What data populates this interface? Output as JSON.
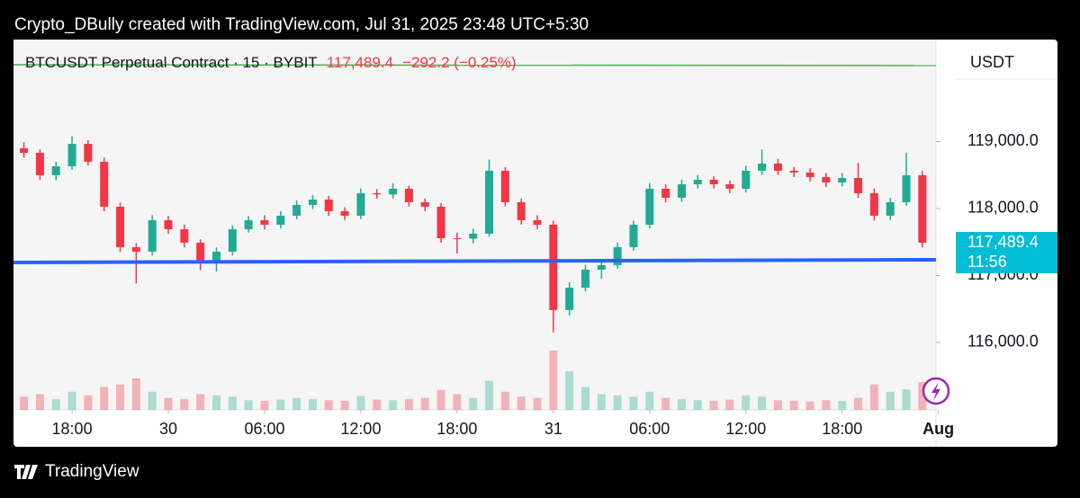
{
  "header": "Crypto_DBully created with TradingView.com, Jul 31, 2025 23:48 UTC+5:30",
  "footer": "TradingView",
  "chart_data": {
    "type": "candlestick",
    "title": "BTCUSDT Perpetual Contract · 15 · BYBIT",
    "change": {
      "value": -292.2,
      "label": "−292.2 (−0.25%)"
    },
    "last_price": {
      "value": 117489.4,
      "label": "117,489.4",
      "countdown": "11:56"
    },
    "y_unit": "USDT",
    "up_color": "#22ab94",
    "down_color": "#f23645",
    "x": [
      -3,
      -2,
      -1,
      0,
      1,
      2,
      3,
      4,
      5,
      6,
      7,
      8,
      9,
      10,
      11,
      12,
      13,
      14,
      15,
      16,
      17,
      18,
      19,
      20,
      21,
      22,
      23,
      24,
      25,
      26,
      27,
      28,
      29,
      30,
      31,
      32,
      33,
      34,
      35,
      36,
      37,
      38,
      39,
      40,
      41,
      42,
      43,
      44,
      45,
      46,
      47,
      48,
      49,
      50,
      51,
      52,
      53
    ],
    "open": [
      118900,
      118832,
      118497,
      118631,
      118966,
      118698,
      118027,
      117423,
      117356,
      117826,
      117691,
      117490,
      117222,
      117356,
      117691,
      117826,
      117758,
      117893,
      118054,
      118134,
      117960,
      117893,
      118228,
      118210,
      118295,
      118094,
      118027,
      117557,
      117550,
      117624,
      118564,
      118094,
      117826,
      117758,
      116484,
      116819,
      117087,
      117154,
      117423,
      117758,
      118295,
      118161,
      118362,
      118429,
      118362,
      118295,
      118564,
      118671,
      118564,
      118537,
      118470,
      118389,
      118456,
      118228,
      117893,
      118094,
      118497
    ],
    "high": [
      118990,
      118880,
      118700,
      119080,
      119020,
      118760,
      118090,
      117480,
      117900,
      117890,
      117760,
      117540,
      117420,
      117750,
      117890,
      117900,
      117960,
      118120,
      118200,
      118190,
      118020,
      118300,
      118290,
      118380,
      118340,
      118150,
      118080,
      117640,
      117700,
      118730,
      118620,
      118150,
      117900,
      117820,
      116900,
      117160,
      117230,
      117490,
      117820,
      118380,
      118360,
      118430,
      118500,
      118480,
      118420,
      118640,
      118880,
      118740,
      118620,
      118600,
      118530,
      118530,
      118680,
      118300,
      118160,
      118830,
      118560
    ],
    "low": [
      118760,
      118430,
      118420,
      118580,
      118640,
      117960,
      117350,
      116880,
      117300,
      117620,
      117420,
      117080,
      117060,
      117300,
      117640,
      117690,
      117700,
      117840,
      117990,
      117890,
      117830,
      117840,
      118150,
      118150,
      118030,
      117960,
      117490,
      117330,
      117480,
      117580,
      118030,
      117760,
      117690,
      116150,
      116400,
      116760,
      116950,
      117100,
      117370,
      117700,
      118090,
      118100,
      118300,
      118300,
      118230,
      118240,
      118500,
      118500,
      118470,
      118400,
      118320,
      118330,
      118160,
      117820,
      117830,
      118040,
      117420
    ],
    "close": [
      118832,
      118497,
      118631,
      118966,
      118698,
      118027,
      117423,
      117356,
      117826,
      117691,
      117490,
      117222,
      117356,
      117691,
      117826,
      117758,
      117893,
      118054,
      118134,
      117960,
      117893,
      118228,
      118210,
      118295,
      118094,
      118027,
      117557,
      117550,
      117624,
      118564,
      118094,
      117826,
      117758,
      116484,
      116819,
      117087,
      117154,
      117423,
      117758,
      118295,
      118161,
      118362,
      118429,
      118362,
      118295,
      118564,
      118671,
      118564,
      118537,
      118470,
      118389,
      118456,
      118228,
      117893,
      118094,
      118497,
      117489.4
    ],
    "volume": [
      220,
      260,
      180,
      300,
      240,
      380,
      420,
      520,
      300,
      200,
      180,
      260,
      240,
      220,
      160,
      150,
      170,
      200,
      180,
      160,
      150,
      230,
      170,
      160,
      180,
      200,
      330,
      260,
      200,
      480,
      300,
      220,
      200,
      980,
      640,
      380,
      260,
      240,
      220,
      300,
      200,
      180,
      160,
      150,
      170,
      240,
      220,
      160,
      150,
      140,
      160,
      150,
      200,
      420,
      300,
      340,
      460
    ],
    "lines": [
      {
        "color": "#2962ff",
        "x": [
          -3.65,
          53.85
        ],
        "y": [
          117195,
          117235
        ]
      },
      {
        "color": "#4caf50",
        "x": [
          -3.65,
          53.85
        ],
        "y": [
          120147,
          120135
        ]
      }
    ],
    "xlim": [
      -3.65,
      53.85
    ],
    "xticks": [
      {
        "value": 0,
        "label": "18:00"
      },
      {
        "value": 6,
        "label": "30"
      },
      {
        "value": 12,
        "label": "06:00"
      },
      {
        "value": 18,
        "label": "12:00"
      },
      {
        "value": 24,
        "label": "18:00"
      },
      {
        "value": 30,
        "label": "31"
      },
      {
        "value": 36,
        "label": "06:00"
      },
      {
        "value": 42,
        "label": "12:00"
      },
      {
        "value": 48,
        "label": "18:00"
      },
      {
        "value": 54,
        "label": "Aug"
      }
    ],
    "ylim": [
      114993,
      120523
    ],
    "yticks": [
      {
        "value": 116000,
        "label": "116,000.0"
      },
      {
        "value": 117000,
        "label": "117,000.0"
      },
      {
        "value": 118000,
        "label": "118,000.0"
      },
      {
        "value": 119000,
        "label": "119,000.0"
      }
    ]
  }
}
